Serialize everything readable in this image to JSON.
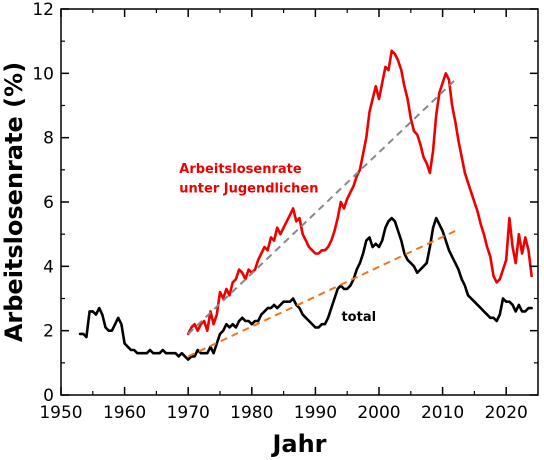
{
  "chart_data": {
    "type": "line",
    "xlabel": "Jahr",
    "ylabel": "Arbeitslosenrate (%)",
    "xlim": [
      1950,
      2025
    ],
    "ylim": [
      0,
      12
    ],
    "xticks": [
      "1950",
      "1960",
      "1970",
      "1980",
      "1990",
      "2000",
      "2010",
      "2020"
    ],
    "yticks": [
      "0",
      "2",
      "4",
      "6",
      "8",
      "10",
      "12"
    ],
    "grid": false,
    "series": [
      {
        "key": "youth",
        "color": "#ee0000",
        "x": [
          1970.0,
          1970.5,
          1971.0,
          1971.5,
          1972.0,
          1972.5,
          1973.0,
          1973.5,
          1974.0,
          1974.5,
          1975.0,
          1975.5,
          1976.0,
          1976.5,
          1977.0,
          1977.5,
          1978.0,
          1978.5,
          1979.0,
          1979.5,
          1980.0,
          1980.5,
          1981.0,
          1981.5,
          1982.0,
          1982.5,
          1983.0,
          1983.5,
          1984.0,
          1984.5,
          1985.0,
          1985.5,
          1986.0,
          1986.5,
          1987.0,
          1987.5,
          1988.0,
          1988.5,
          1989.0,
          1989.5,
          1990.0,
          1990.5,
          1991.0,
          1991.5,
          1992.0,
          1992.5,
          1993.0,
          1993.5,
          1994.0,
          1994.5,
          1995.0,
          1995.5,
          1996.0,
          1996.5,
          1997.0,
          1997.5,
          1998.0,
          1998.5,
          1999.0,
          1999.5,
          2000.0,
          2000.5,
          2001.0,
          2001.5,
          2002.0,
          2002.5,
          2003.0,
          2003.5,
          2004.0,
          2004.5,
          2005.0,
          2005.5,
          2006.0,
          2006.5,
          2007.0,
          2007.5,
          2008.0,
          2008.5,
          2009.0,
          2009.5,
          2010.0,
          2010.5,
          2011.0,
          2011.5,
          2012.0,
          2012.5,
          2013.0,
          2013.5,
          2014.0,
          2014.5,
          2015.0,
          2015.5,
          2016.0,
          2016.5,
          2017.0,
          2017.5,
          2018.0,
          2018.5,
          2019.0,
          2019.5,
          2020.0,
          2020.5,
          2021.0,
          2021.5,
          2022.0,
          2022.5,
          2023.0,
          2023.5,
          2024.0
        ],
        "values": [
          1.9,
          2.1,
          2.2,
          2.0,
          2.2,
          2.3,
          2.0,
          2.6,
          2.2,
          2.5,
          3.2,
          3.0,
          3.3,
          3.1,
          3.5,
          3.6,
          3.9,
          3.8,
          3.6,
          3.9,
          3.8,
          3.9,
          4.2,
          4.4,
          4.6,
          4.5,
          4.9,
          4.8,
          5.2,
          5.0,
          5.2,
          5.4,
          5.6,
          5.8,
          5.4,
          5.5,
          5.0,
          4.8,
          4.6,
          4.5,
          4.4,
          4.4,
          4.5,
          4.5,
          4.6,
          4.8,
          5.1,
          5.5,
          6.0,
          5.8,
          6.1,
          6.3,
          6.5,
          6.8,
          7.0,
          7.5,
          8.0,
          8.8,
          9.2,
          9.6,
          9.2,
          9.7,
          10.2,
          10.1,
          10.7,
          10.6,
          10.4,
          10.1,
          9.6,
          9.2,
          8.6,
          8.2,
          8.1,
          7.8,
          7.4,
          7.2,
          6.9,
          7.6,
          8.7,
          9.4,
          9.7,
          10.0,
          9.8,
          9.0,
          8.5,
          7.9,
          7.4,
          6.9,
          6.6,
          6.3,
          6.0,
          5.7,
          5.3,
          5.0,
          4.6,
          4.3,
          3.7,
          3.5,
          3.6,
          3.9,
          4.2,
          5.5,
          4.6,
          4.1,
          5.0,
          4.4,
          4.9,
          4.5,
          3.7
        ]
      },
      {
        "key": "total",
        "color": "#000000",
        "x": [
          1953.0,
          1953.5,
          1954.0,
          1954.5,
          1955.0,
          1955.5,
          1956.0,
          1956.5,
          1957.0,
          1957.5,
          1958.0,
          1958.5,
          1959.0,
          1959.5,
          1960.0,
          1960.5,
          1961.0,
          1961.5,
          1962.0,
          1962.5,
          1963.0,
          1963.5,
          1964.0,
          1964.5,
          1965.0,
          1965.5,
          1966.0,
          1966.5,
          1967.0,
          1967.5,
          1968.0,
          1968.5,
          1969.0,
          1969.5,
          1970.0,
          1970.5,
          1971.0,
          1971.5,
          1972.0,
          1972.5,
          1973.0,
          1973.5,
          1974.0,
          1974.5,
          1975.0,
          1975.5,
          1976.0,
          1976.5,
          1977.0,
          1977.5,
          1978.0,
          1978.5,
          1979.0,
          1979.5,
          1980.0,
          1980.5,
          1981.0,
          1981.5,
          1982.0,
          1982.5,
          1983.0,
          1983.5,
          1984.0,
          1984.5,
          1985.0,
          1985.5,
          1986.0,
          1986.5,
          1987.0,
          1987.5,
          1988.0,
          1988.5,
          1989.0,
          1989.5,
          1990.0,
          1990.5,
          1991.0,
          1991.5,
          1992.0,
          1992.5,
          1993.0,
          1993.5,
          1994.0,
          1994.5,
          1995.0,
          1995.5,
          1996.0,
          1996.5,
          1997.0,
          1997.5,
          1998.0,
          1998.5,
          1999.0,
          1999.5,
          2000.0,
          2000.5,
          2001.0,
          2001.5,
          2002.0,
          2002.5,
          2003.0,
          2003.5,
          2004.0,
          2004.5,
          2005.0,
          2005.5,
          2006.0,
          2006.5,
          2007.0,
          2007.5,
          2008.0,
          2008.5,
          2009.0,
          2009.5,
          2010.0,
          2010.5,
          2011.0,
          2011.5,
          2012.0,
          2012.5,
          2013.0,
          2013.5,
          2014.0,
          2014.5,
          2015.0,
          2015.5,
          2016.0,
          2016.5,
          2017.0,
          2017.5,
          2018.0,
          2018.5,
          2019.0,
          2019.5,
          2020.0,
          2020.5,
          2021.0,
          2021.5,
          2022.0,
          2022.5,
          2023.0,
          2023.5,
          2024.0
        ],
        "values": [
          1.9,
          1.9,
          1.8,
          2.6,
          2.6,
          2.5,
          2.7,
          2.5,
          2.1,
          2.0,
          2.0,
          2.2,
          2.4,
          2.2,
          1.6,
          1.5,
          1.4,
          1.4,
          1.3,
          1.3,
          1.3,
          1.3,
          1.4,
          1.3,
          1.3,
          1.3,
          1.4,
          1.3,
          1.3,
          1.3,
          1.3,
          1.2,
          1.3,
          1.2,
          1.1,
          1.2,
          1.2,
          1.4,
          1.3,
          1.3,
          1.3,
          1.5,
          1.3,
          1.6,
          1.9,
          2.0,
          2.2,
          2.1,
          2.2,
          2.1,
          2.3,
          2.4,
          2.3,
          2.3,
          2.2,
          2.3,
          2.3,
          2.5,
          2.6,
          2.7,
          2.7,
          2.8,
          2.7,
          2.8,
          2.9,
          2.9,
          2.9,
          3.0,
          2.8,
          2.7,
          2.5,
          2.4,
          2.3,
          2.2,
          2.1,
          2.1,
          2.2,
          2.2,
          2.4,
          2.7,
          3.0,
          3.3,
          3.4,
          3.3,
          3.3,
          3.4,
          3.6,
          3.9,
          4.1,
          4.4,
          4.8,
          4.9,
          4.6,
          4.7,
          4.6,
          4.8,
          5.2,
          5.4,
          5.5,
          5.4,
          5.1,
          4.8,
          4.4,
          4.2,
          4.1,
          4.0,
          3.8,
          3.9,
          4.0,
          4.1,
          4.6,
          5.2,
          5.5,
          5.3,
          5.1,
          4.8,
          4.5,
          4.3,
          4.1,
          3.9,
          3.6,
          3.4,
          3.1,
          3.0,
          2.9,
          2.8,
          2.7,
          2.6,
          2.5,
          2.4,
          2.4,
          2.3,
          2.5,
          3.0,
          2.9,
          2.9,
          2.8,
          2.6,
          2.8,
          2.6,
          2.6,
          2.7,
          2.7
        ]
      }
    ],
    "trendlines": [
      {
        "key": "youth-trend",
        "color": "#888888",
        "x": [
          1970,
          2012
        ],
        "y": [
          1.9,
          9.8
        ]
      },
      {
        "key": "total-trend",
        "color": "#ee7722",
        "x": [
          1970,
          2012
        ],
        "y": [
          1.2,
          5.1
        ]
      }
    ],
    "annotations": [
      {
        "key": "youth-label-1",
        "text": "Arbeitslosenrate",
        "color": "#ee0000",
        "x": 1968.6,
        "y": 6.9
      },
      {
        "key": "youth-label-2",
        "text": "unter Jugendlichen",
        "color": "#ee0000",
        "x": 1968.6,
        "y": 6.3
      },
      {
        "key": "total-label",
        "text": "total",
        "color": "#000000",
        "x": 1994.1,
        "y": 2.3
      }
    ]
  }
}
